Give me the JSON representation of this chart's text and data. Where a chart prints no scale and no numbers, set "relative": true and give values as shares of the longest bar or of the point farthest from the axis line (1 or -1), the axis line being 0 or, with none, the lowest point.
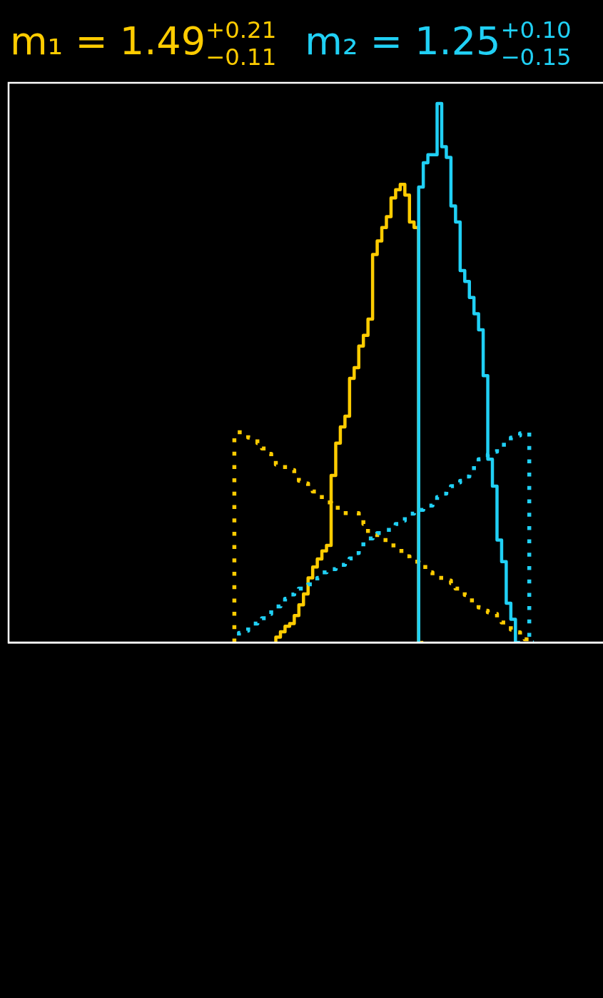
{
  "chart_data": {
    "type": "step",
    "relative": true,
    "categories": [
      null,
      null,
      null,
      null,
      null,
      null,
      null,
      null,
      null,
      null,
      null,
      null,
      null,
      null,
      null,
      null,
      null,
      null,
      null,
      null,
      null,
      null,
      null,
      null,
      null,
      null,
      null,
      null,
      null,
      null,
      null,
      null,
      null,
      null,
      null,
      null,
      null,
      null,
      null,
      null,
      null,
      null,
      null,
      null,
      null,
      null,
      null,
      null,
      null,
      null,
      null,
      null,
      null,
      null,
      null,
      null,
      null,
      null,
      null,
      null,
      null,
      null,
      null,
      null,
      null,
      null,
      null,
      null,
      null,
      null,
      null,
      null,
      null,
      null,
      null,
      null,
      null,
      null,
      null,
      null,
      null,
      null,
      null,
      null,
      null,
      null,
      null,
      null,
      null,
      null,
      null,
      null,
      null,
      null,
      null,
      null,
      null,
      null,
      null,
      null,
      null,
      null,
      null,
      null,
      null,
      null,
      null,
      null,
      null,
      null,
      null,
      null,
      null,
      null,
      null,
      null,
      null,
      null,
      null,
      null,
      null,
      null,
      null,
      null,
      null,
      null,
      null,
      null,
      null,
      null
    ],
    "series": [
      {
        "name": "m₁ = 1.49$^{+0.21}$$_{−0.11}$",
        "color": "#ffcc00",
        "values": [
          null,
          null,
          null,
          null,
          null,
          null,
          null,
          null,
          null,
          null,
          null,
          null,
          null,
          null,
          null,
          null,
          null,
          null,
          null,
          null,
          null,
          null,
          null,
          null,
          null,
          null,
          null,
          null,
          null,
          null,
          null,
          null,
          null,
          null,
          null,
          null,
          null,
          null,
          null,
          null,
          null,
          null,
          null,
          null,
          null,
          null,
          null,
          null,
          null,
          null,
          null,
          null,
          null,
          null,
          null,
          null,
          null,
          null,
          0,
          0.01,
          0.02,
          0.03,
          0.035,
          0.05,
          0.07,
          0.09,
          0.12,
          0.14,
          0.155,
          0.17,
          0.18,
          0.31,
          0.37,
          0.4,
          0.42,
          0.49,
          0.51,
          0.55,
          0.57,
          0.6,
          0.72,
          0.745,
          0.77,
          0.79,
          0.825,
          0.84,
          0.85,
          0.83,
          0.78,
          0.77,
          0,
          null,
          null,
          null,
          null,
          null,
          null,
          null,
          null,
          null,
          null,
          null,
          null,
          null,
          null,
          null,
          null,
          null,
          null,
          null,
          null,
          null,
          null,
          null,
          null,
          null,
          null,
          null,
          null,
          null,
          null,
          null,
          null,
          null,
          null,
          null,
          null,
          null,
          null,
          null
        ]
      },
      {
        "color": "#ffcc00",
        "line_style": "dotted",
        "values": [
          null,
          null,
          null,
          null,
          null,
          null,
          null,
          null,
          null,
          null,
          null,
          null,
          null,
          null,
          null,
          null,
          null,
          null,
          null,
          null,
          null,
          null,
          null,
          null,
          null,
          null,
          null,
          null,
          null,
          null,
          null,
          null,
          null,
          null,
          null,
          null,
          null,
          null,
          null,
          null,
          null,
          null,
          null,
          null,
          null,
          null,
          null,
          null,
          null,
          0,
          0.39,
          0.39,
          0.39,
          0.38,
          0.38,
          0.37,
          0.36,
          0.35,
          0.34,
          0.33,
          0.33,
          0.32,
          0.32,
          0.31,
          0.3,
          0.295,
          0.29,
          0.28,
          0.27,
          0.27,
          0.26,
          0.25,
          0.25,
          0.24,
          0.24,
          0.24,
          0.24,
          0.23,
          0.22,
          0.2,
          0.2,
          0.19,
          0.19,
          0.19,
          0.18,
          0.17,
          0.17,
          0.16,
          0.15,
          0.15,
          0.14,
          0.14,
          0.13,
          0.12,
          0.12,
          0.12,
          0.115,
          0.11,
          0.1,
          0.094,
          0.088,
          0.078,
          0.072,
          0.065,
          0.059,
          0.056,
          0.053,
          0.046,
          0.037,
          0.03,
          0.024,
          0.019,
          0.011,
          0.006,
          0,
          null,
          null,
          null,
          null,
          null,
          null,
          null,
          null,
          null,
          null,
          null,
          null,
          null,
          null,
          null
        ]
      },
      {
        "name": "m₂ = 1.25$^{+0.10}$$_{−0.15}$",
        "color": "#20d0f5",
        "values": [
          null,
          null,
          null,
          null,
          null,
          null,
          null,
          null,
          null,
          null,
          null,
          null,
          null,
          null,
          null,
          null,
          null,
          null,
          null,
          null,
          null,
          null,
          null,
          null,
          null,
          null,
          null,
          null,
          null,
          null,
          null,
          null,
          null,
          null,
          null,
          null,
          null,
          null,
          null,
          null,
          null,
          null,
          null,
          null,
          null,
          null,
          null,
          null,
          null,
          null,
          null,
          null,
          null,
          null,
          null,
          null,
          null,
          null,
          null,
          null,
          null,
          null,
          null,
          null,
          null,
          null,
          null,
          null,
          null,
          null,
          null,
          null,
          null,
          null,
          null,
          null,
          null,
          null,
          null,
          null,
          null,
          null,
          null,
          null,
          null,
          null,
          null,
          null,
          null,
          0,
          0.845,
          0.89,
          0.905,
          0.905,
          1,
          0.92,
          0.9,
          0.81,
          0.78,
          0.69,
          0.67,
          0.64,
          0.61,
          0.58,
          0.495,
          0.34,
          0.29,
          0.19,
          0.15,
          0.073,
          0.043,
          0,
          null,
          null,
          null,
          null,
          null,
          null,
          null,
          null,
          null,
          null,
          null,
          null,
          null,
          null,
          null,
          null,
          null,
          null
        ]
      },
      {
        "color": "#20d0f5",
        "line_style": "dotted",
        "values": [
          null,
          null,
          null,
          null,
          null,
          null,
          null,
          null,
          null,
          null,
          null,
          null,
          null,
          null,
          null,
          null,
          null,
          null,
          null,
          null,
          null,
          null,
          null,
          null,
          null,
          null,
          null,
          null,
          null,
          null,
          null,
          null,
          null,
          null,
          null,
          null,
          null,
          null,
          null,
          null,
          null,
          null,
          null,
          null,
          null,
          null,
          null,
          null,
          null,
          null,
          0.013,
          0.018,
          0.022,
          0.029,
          0.035,
          0.04,
          0.045,
          0.053,
          0.061,
          0.067,
          0.075,
          0.081,
          0.089,
          0.096,
          0.1,
          0.105,
          0.108,
          0.113,
          0.12,
          0.13,
          0.132,
          0.136,
          0.139,
          0.144,
          0.15,
          0.156,
          0.166,
          0.174,
          0.187,
          0.193,
          0.2,
          0.203,
          0.204,
          0.209,
          0.214,
          0.22,
          0.226,
          0.236,
          0.239,
          0.242,
          0.246,
          0.25,
          0.254,
          0.262,
          0.27,
          0.276,
          0.285,
          0.29,
          0.297,
          0.3,
          0.308,
          0.317,
          0.33,
          0.34,
          0.344,
          0.349,
          0.354,
          0.36,
          0.367,
          0.375,
          0.38,
          0.384,
          0.388,
          0.39,
          0,
          null,
          null,
          null,
          null,
          null,
          null,
          null,
          null,
          null,
          null,
          null,
          null,
          null,
          null,
          null
        ]
      }
    ]
  }
}
